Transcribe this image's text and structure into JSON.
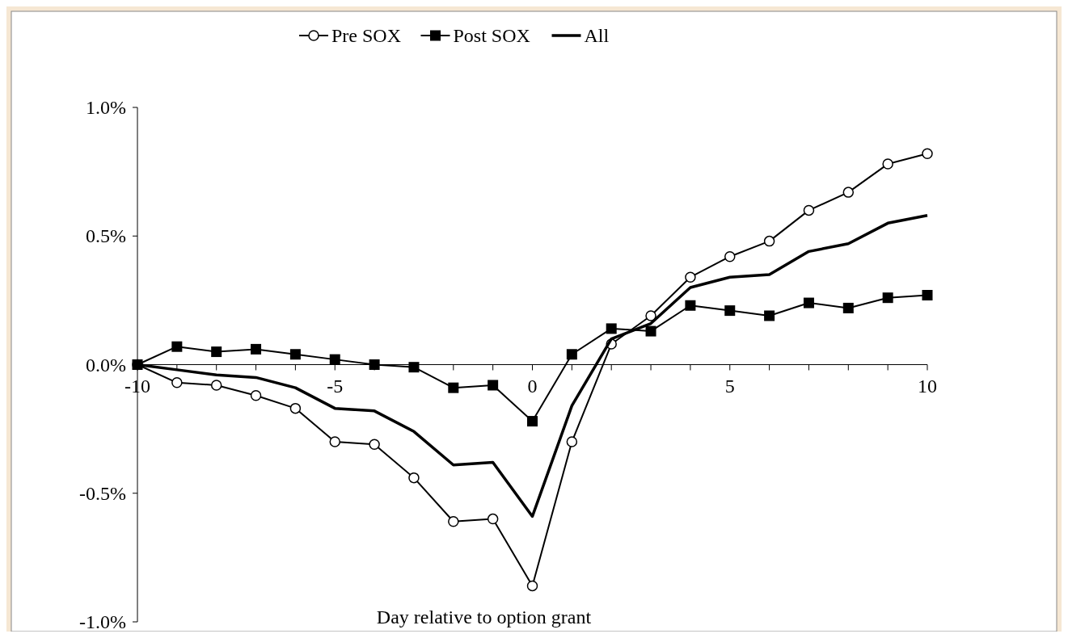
{
  "chart_data": {
    "type": "line",
    "xlabel": "Day relative to option grant",
    "x": [
      -10,
      -9,
      -8,
      -7,
      -6,
      -5,
      -4,
      -3,
      -2,
      -1,
      0,
      1,
      2,
      3,
      4,
      5,
      6,
      7,
      8,
      9,
      10
    ],
    "series": [
      {
        "name": "Pre SOX",
        "color": "#000000",
        "marker": "circle",
        "values": [
          0,
          -0.07,
          -0.08,
          -0.12,
          -0.17,
          -0.3,
          -0.31,
          -0.44,
          -0.61,
          -0.6,
          -0.86,
          -0.3,
          0.08,
          0.19,
          0.34,
          0.42,
          0.48,
          0.6,
          0.67,
          0.78,
          0.82
        ]
      },
      {
        "name": "Post SOX",
        "color": "#000000",
        "marker": "square",
        "values": [
          0,
          0.07,
          0.05,
          0.06,
          0.04,
          0.02,
          0.0,
          -0.01,
          -0.09,
          -0.08,
          -0.22,
          0.04,
          0.14,
          0.13,
          0.23,
          0.21,
          0.19,
          0.24,
          0.22,
          0.26,
          0.27
        ]
      },
      {
        "name": "All",
        "color": "#000000",
        "marker": "none",
        "values": [
          0,
          -0.02,
          -0.04,
          -0.05,
          -0.09,
          -0.17,
          -0.18,
          -0.26,
          -0.39,
          -0.38,
          -0.59,
          -0.16,
          0.1,
          0.16,
          0.3,
          0.34,
          0.35,
          0.44,
          0.47,
          0.55,
          0.58
        ]
      }
    ],
    "xlim": [
      -10,
      10
    ],
    "xticks": [
      -10,
      {
        "value": -9,
        "label": null
      },
      {
        "value": -8,
        "label": null
      },
      {
        "value": -7,
        "label": null
      },
      {
        "value": -6,
        "label": null
      },
      -5,
      {
        "value": -4,
        "label": null
      },
      {
        "value": -3,
        "label": null
      },
      {
        "value": -2,
        "label": null
      },
      {
        "value": -1,
        "label": null
      },
      0,
      {
        "value": 1,
        "label": null
      },
      {
        "value": 2,
        "label": null
      },
      {
        "value": 3,
        "label": null
      },
      {
        "value": 4,
        "label": null
      },
      5,
      {
        "value": 6,
        "label": null
      },
      {
        "value": 7,
        "label": null
      },
      {
        "value": 8,
        "label": null
      },
      {
        "value": 9,
        "label": null
      },
      10
    ],
    "ylim": [
      -1,
      1
    ],
    "yticks": [
      {
        "value": -1,
        "label": "-1.0%"
      },
      {
        "value": -0.5,
        "label": "-0.5%"
      },
      {
        "value": 0,
        "label": "0.0%"
      },
      {
        "value": 0.5,
        "label": "0.5%"
      },
      {
        "value": 1,
        "label": "1.0%"
      }
    ],
    "grid": false,
    "legend": "top",
    "line_style": "solid"
  }
}
